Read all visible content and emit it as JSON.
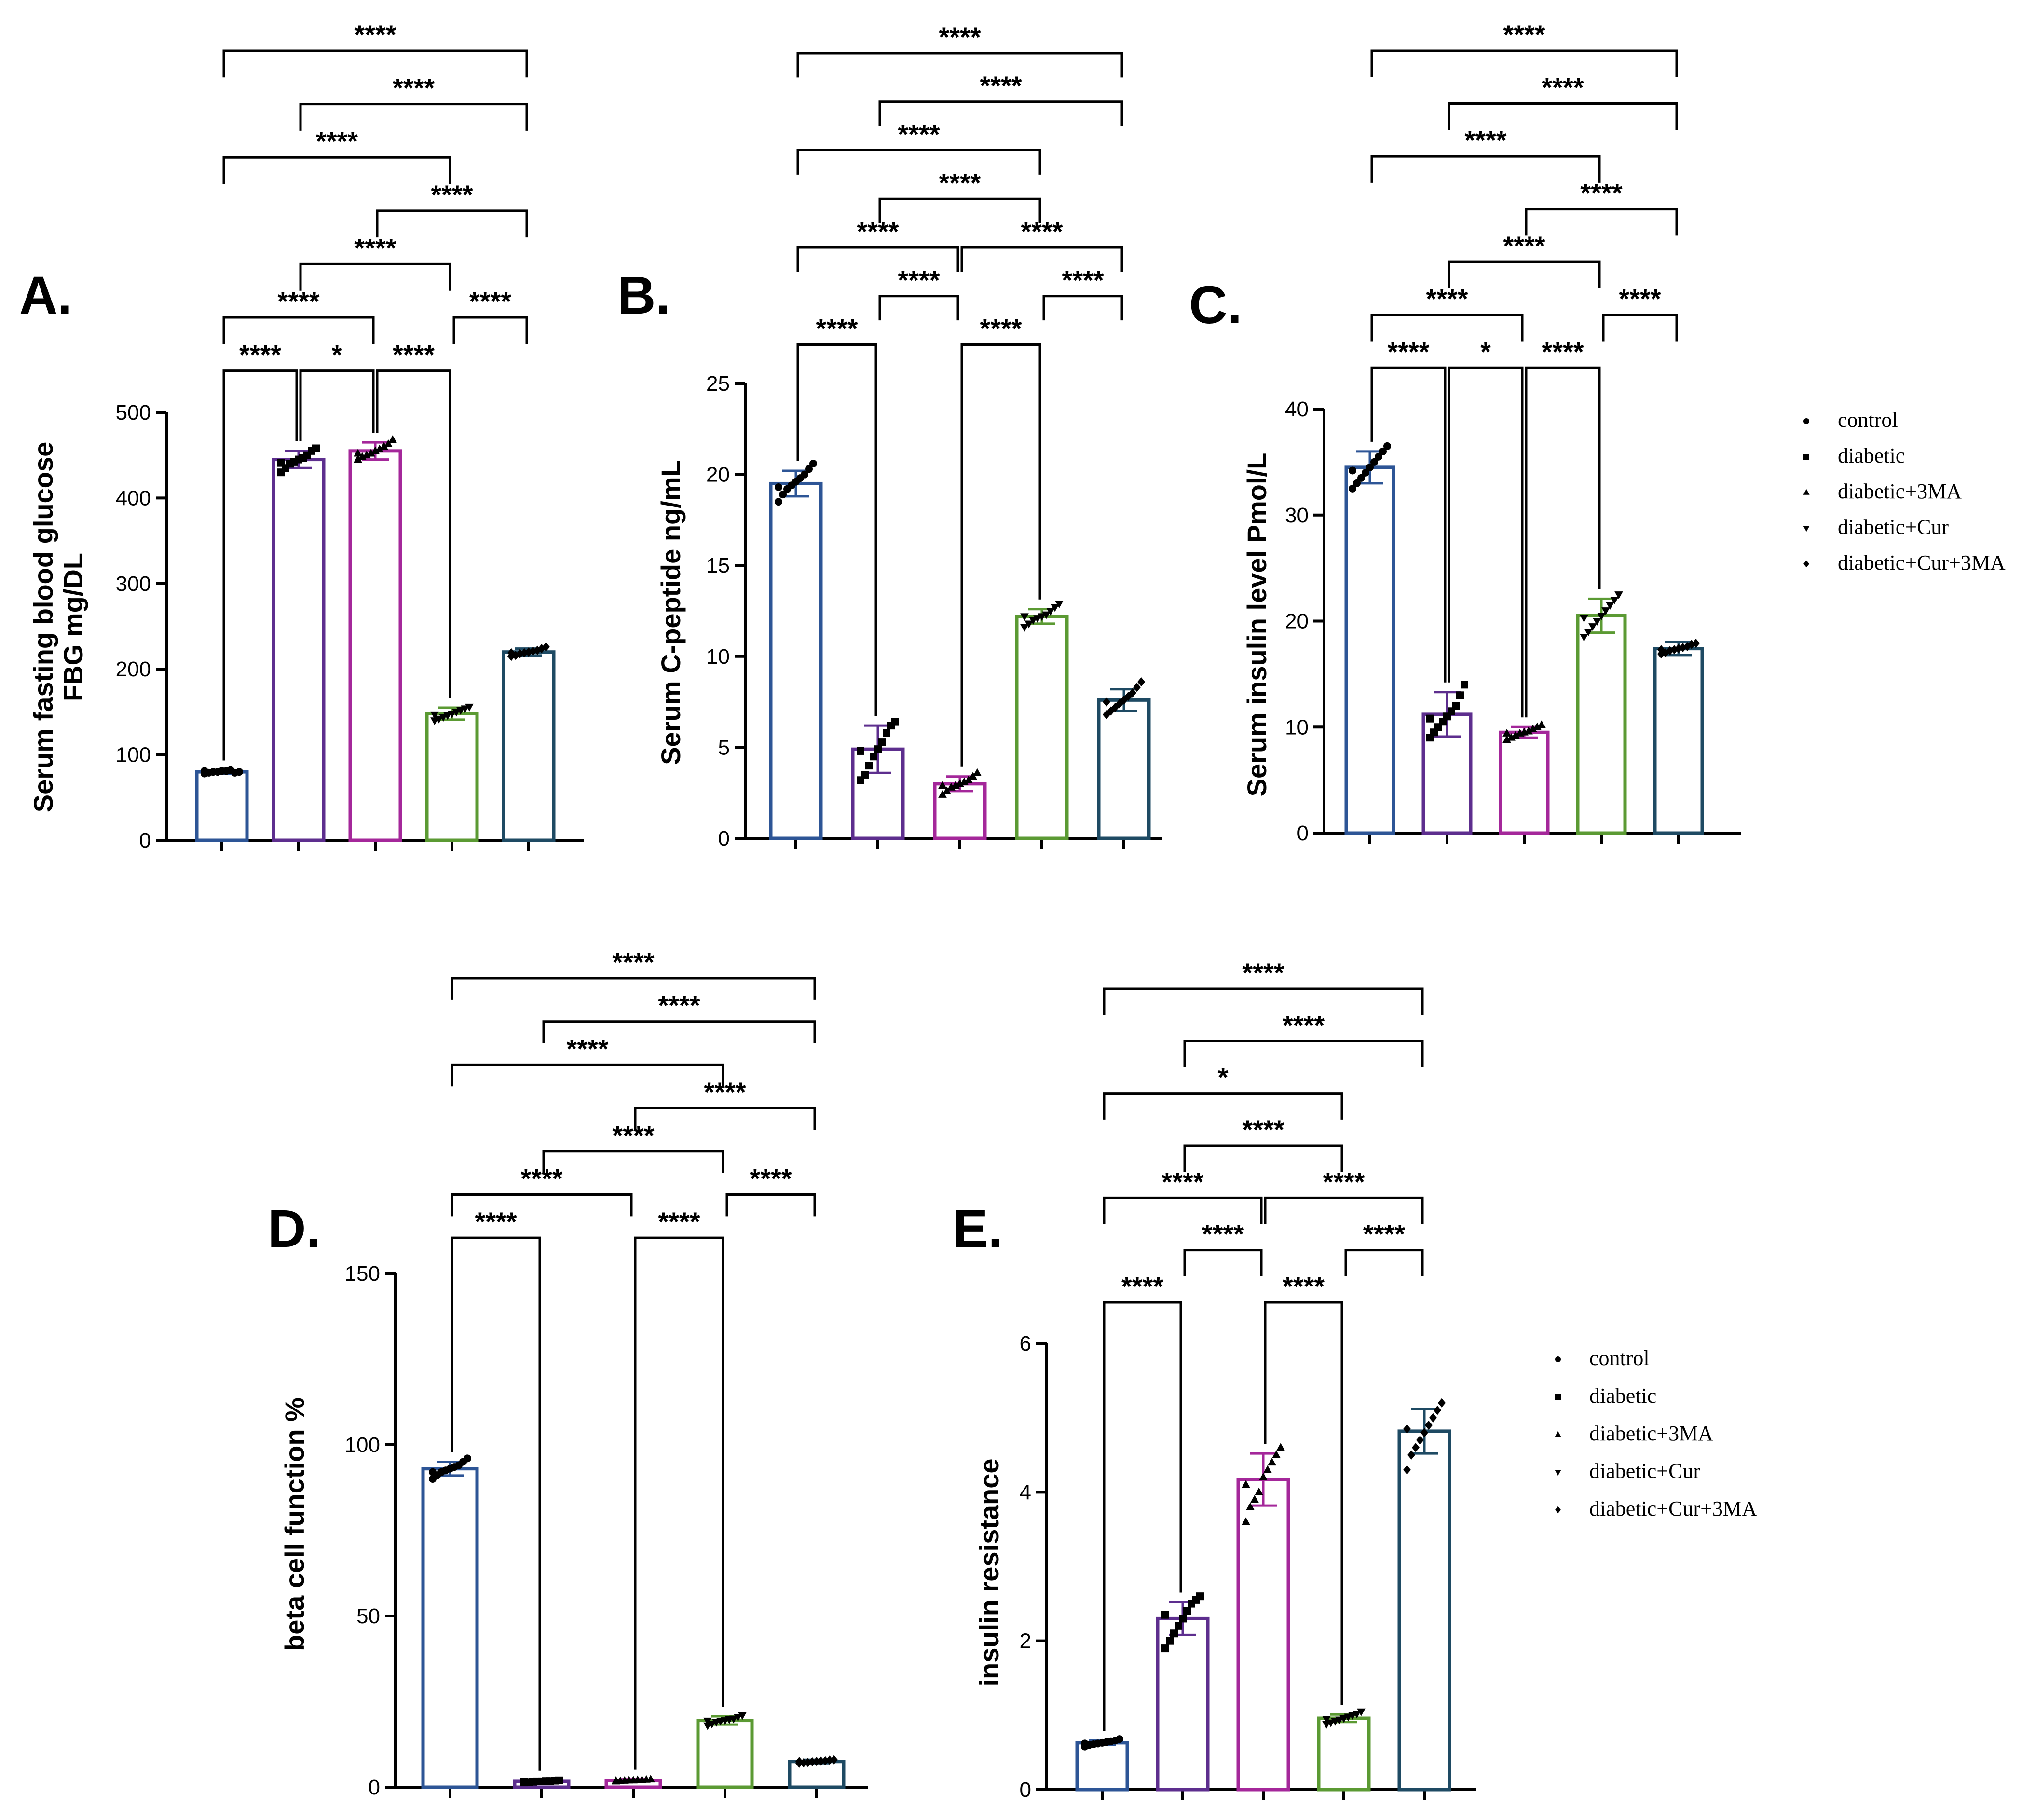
{
  "legend": {
    "items": [
      {
        "label": "control",
        "marker": "circle"
      },
      {
        "label": "diabetic",
        "marker": "square"
      },
      {
        "label": "diabetic+3MA",
        "marker": "triangle-up"
      },
      {
        "label": "diabetic+Cur",
        "marker": "triangle-down"
      },
      {
        "label": "diabetic+Cur+3MA",
        "marker": "diamond"
      }
    ]
  },
  "colors": {
    "control": "#2d5596",
    "diabetic": "#5d2e8e",
    "diabetic+3MA": "#a4279a",
    "diabetic+Cur": "#5b9a33",
    "diabetic+Cur+3MA": "#1e4a63",
    "points": "#000000"
  },
  "chart_data": [
    {
      "panel": "A.",
      "type": "bar",
      "ylabel": [
        "Serum fasting blood glucose",
        "FBG mg/DL"
      ],
      "ylim": [
        0,
        500
      ],
      "yticks": [
        0,
        100,
        200,
        300,
        400,
        500
      ],
      "categories": [
        "control",
        "diabetic",
        "diabetic+3MA",
        "diabetic+Cur",
        "diabetic+Cur+3MA"
      ],
      "values": [
        80,
        445,
        455,
        148,
        220
      ],
      "errors": [
        2,
        10,
        10,
        7,
        4
      ],
      "points": [
        [
          78,
          79,
          80,
          80,
          81,
          81,
          82,
          79,
          80,
          81
        ],
        [
          430,
          435,
          440,
          442,
          445,
          447,
          450,
          455,
          458,
          441
        ],
        [
          445,
          448,
          450,
          452,
          455,
          457,
          460,
          463,
          468,
          452
        ],
        [
          140,
          142,
          144,
          146,
          148,
          150,
          152,
          154,
          156,
          147
        ],
        [
          215,
          216,
          218,
          219,
          220,
          221,
          222,
          224,
          226,
          219
        ]
      ],
      "comparisons": [
        {
          "from": 0,
          "to": 1,
          "label": "****",
          "level": 0
        },
        {
          "from": 1,
          "to": 2,
          "label": "*",
          "level": 0
        },
        {
          "from": 2,
          "to": 3,
          "label": "****",
          "level": 0
        },
        {
          "from": 0,
          "to": 2,
          "label": "****",
          "level": 1
        },
        {
          "from": 3,
          "to": 4,
          "label": "****",
          "level": 1
        },
        {
          "from": 1,
          "to": 3,
          "label": "****",
          "level": 2
        },
        {
          "from": 2,
          "to": 4,
          "label": "****",
          "level": 3
        },
        {
          "from": 0,
          "to": 3,
          "label": "****",
          "level": 4
        },
        {
          "from": 1,
          "to": 4,
          "label": "****",
          "level": 5
        },
        {
          "from": 0,
          "to": 4,
          "label": "****",
          "level": 6
        }
      ]
    },
    {
      "panel": "B.",
      "type": "bar",
      "ylabel": [
        "Serum C-peptide ng/mL"
      ],
      "ylim": [
        0,
        25
      ],
      "yticks": [
        0,
        5,
        10,
        15,
        20,
        25
      ],
      "categories": [
        "control",
        "diabetic",
        "diabetic+3MA",
        "diabetic+Cur",
        "diabetic+Cur+3MA"
      ],
      "values": [
        19.5,
        4.9,
        3.0,
        12.2,
        7.6
      ],
      "errors": [
        0.7,
        1.3,
        0.4,
        0.4,
        0.6
      ],
      "points": [
        [
          18.5,
          18.9,
          19.2,
          19.4,
          19.6,
          19.8,
          20.0,
          20.3,
          20.6,
          19.3
        ],
        [
          3.2,
          3.5,
          4.0,
          4.5,
          4.9,
          5.3,
          5.8,
          6.2,
          6.4,
          4.8
        ],
        [
          2.4,
          2.6,
          2.8,
          2.9,
          3.0,
          3.1,
          3.2,
          3.4,
          3.6,
          2.9
        ],
        [
          11.6,
          11.8,
          12.0,
          12.1,
          12.2,
          12.3,
          12.5,
          12.7,
          12.9,
          12.2
        ],
        [
          6.8,
          7.0,
          7.2,
          7.4,
          7.6,
          7.8,
          8.0,
          8.3,
          8.6,
          7.5
        ]
      ],
      "comparisons": [
        {
          "from": 0,
          "to": 1,
          "label": "****",
          "level": 0
        },
        {
          "from": 2,
          "to": 3,
          "label": "****",
          "level": 0
        },
        {
          "from": 1,
          "to": 2,
          "label": "****",
          "level": 1
        },
        {
          "from": 3,
          "to": 4,
          "label": "****",
          "level": 1
        },
        {
          "from": 0,
          "to": 2,
          "label": "****",
          "level": 2
        },
        {
          "from": 2,
          "to": 4,
          "label": "****",
          "level": 2
        },
        {
          "from": 1,
          "to": 3,
          "label": "****",
          "level": 3
        },
        {
          "from": 0,
          "to": 3,
          "label": "****",
          "level": 4
        },
        {
          "from": 1,
          "to": 4,
          "label": "****",
          "level": 5
        },
        {
          "from": 0,
          "to": 4,
          "label": "****",
          "level": 6
        }
      ]
    },
    {
      "panel": "C.",
      "type": "bar",
      "ylabel": [
        "Serum insulin level Pmol/L"
      ],
      "ylim": [
        0,
        40
      ],
      "yticks": [
        0,
        10,
        20,
        30,
        40
      ],
      "categories": [
        "control",
        "diabetic",
        "diabetic+3MA",
        "diabetic+Cur",
        "diabetic+Cur+3MA"
      ],
      "values": [
        34.5,
        11.2,
        9.5,
        20.5,
        17.4
      ],
      "errors": [
        1.5,
        2.1,
        0.5,
        1.6,
        0.6
      ],
      "points": [
        [
          32.5,
          33.0,
          33.5,
          34.0,
          34.5,
          35.0,
          35.5,
          36.0,
          36.5,
          34.2
        ],
        [
          9.0,
          9.5,
          10.0,
          10.5,
          11.0,
          11.5,
          12.0,
          13.0,
          14.0,
          10.8
        ],
        [
          8.8,
          9.0,
          9.2,
          9.4,
          9.5,
          9.6,
          9.8,
          10.0,
          10.2,
          9.4
        ],
        [
          18.5,
          19.0,
          19.5,
          20.0,
          20.5,
          21.0,
          21.5,
          22.0,
          22.5,
          20.3
        ],
        [
          16.9,
          17.0,
          17.2,
          17.3,
          17.4,
          17.5,
          17.6,
          17.8,
          17.9,
          17.3
        ]
      ],
      "comparisons": [
        {
          "from": 0,
          "to": 1,
          "label": "****",
          "level": 0
        },
        {
          "from": 1,
          "to": 2,
          "label": "*",
          "level": 0
        },
        {
          "from": 2,
          "to": 3,
          "label": "****",
          "level": 0
        },
        {
          "from": 0,
          "to": 2,
          "label": "****",
          "level": 1
        },
        {
          "from": 3,
          "to": 4,
          "label": "****",
          "level": 1
        },
        {
          "from": 1,
          "to": 3,
          "label": "****",
          "level": 2
        },
        {
          "from": 2,
          "to": 4,
          "label": "****",
          "level": 3
        },
        {
          "from": 0,
          "to": 3,
          "label": "****",
          "level": 4
        },
        {
          "from": 1,
          "to": 4,
          "label": "****",
          "level": 5
        },
        {
          "from": 0,
          "to": 4,
          "label": "****",
          "level": 6
        }
      ]
    },
    {
      "panel": "D.",
      "type": "bar",
      "ylabel": [
        "beta cell function %"
      ],
      "ylim": [
        0,
        150
      ],
      "yticks": [
        0,
        50,
        100,
        150
      ],
      "categories": [
        "control",
        "diabetic",
        "diabetic+3MA",
        "diabetic+Cur",
        "diabetic+Cur+3MA"
      ],
      "values": [
        93,
        1.7,
        2.0,
        19.5,
        7.5
      ],
      "errors": [
        2,
        0.3,
        0.3,
        1.2,
        0.5
      ],
      "points": [
        [
          90,
          91,
          92,
          92.5,
          93,
          93.5,
          94,
          95,
          96,
          92
        ],
        [
          1.4,
          1.5,
          1.6,
          1.7,
          1.7,
          1.8,
          1.8,
          1.9,
          2.0,
          1.6
        ],
        [
          1.7,
          1.8,
          1.9,
          2.0,
          2.0,
          2.1,
          2.1,
          2.2,
          2.3,
          1.9
        ],
        [
          18,
          18.5,
          19,
          19.3,
          19.5,
          19.8,
          20,
          20.5,
          21,
          19.4
        ],
        [
          7.0,
          7.1,
          7.2,
          7.4,
          7.5,
          7.6,
          7.7,
          7.9,
          8.0,
          7.5
        ]
      ],
      "comparisons": [
        {
          "from": 0,
          "to": 1,
          "label": "****",
          "level": 0
        },
        {
          "from": 2,
          "to": 3,
          "label": "****",
          "level": 0
        },
        {
          "from": 0,
          "to": 2,
          "label": "****",
          "level": 1
        },
        {
          "from": 3,
          "to": 4,
          "label": "****",
          "level": 1
        },
        {
          "from": 1,
          "to": 3,
          "label": "****",
          "level": 2
        },
        {
          "from": 2,
          "to": 4,
          "label": "****",
          "level": 3
        },
        {
          "from": 0,
          "to": 3,
          "label": "****",
          "level": 4
        },
        {
          "from": 1,
          "to": 4,
          "label": "****",
          "level": 5
        },
        {
          "from": 0,
          "to": 4,
          "label": "****",
          "level": 6
        }
      ]
    },
    {
      "panel": "E.",
      "type": "bar",
      "ylabel": [
        "insulin resistance"
      ],
      "ylim": [
        0,
        6
      ],
      "yticks": [
        0,
        2,
        4,
        6
      ],
      "categories": [
        "control",
        "diabetic",
        "diabetic+3MA",
        "diabetic+Cur",
        "diabetic+Cur+3MA"
      ],
      "values": [
        0.63,
        2.3,
        4.17,
        0.96,
        4.82
      ],
      "errors": [
        0.03,
        0.22,
        0.35,
        0.05,
        0.3
      ],
      "points": [
        [
          0.58,
          0.6,
          0.61,
          0.62,
          0.63,
          0.64,
          0.65,
          0.66,
          0.68,
          0.62
        ],
        [
          1.9,
          2.0,
          2.1,
          2.2,
          2.3,
          2.4,
          2.5,
          2.55,
          2.6,
          2.35
        ],
        [
          3.6,
          3.8,
          3.9,
          4.0,
          4.2,
          4.3,
          4.4,
          4.5,
          4.6,
          4.1
        ],
        [
          0.88,
          0.9,
          0.92,
          0.94,
          0.96,
          0.98,
          1.0,
          1.02,
          1.05,
          0.95
        ],
        [
          4.3,
          4.5,
          4.6,
          4.7,
          4.8,
          4.9,
          5.0,
          5.1,
          5.2,
          4.85
        ]
      ],
      "comparisons": [
        {
          "from": 0,
          "to": 1,
          "label": "****",
          "level": 0
        },
        {
          "from": 2,
          "to": 3,
          "label": "****",
          "level": 0
        },
        {
          "from": 1,
          "to": 2,
          "label": "****",
          "level": 1
        },
        {
          "from": 3,
          "to": 4,
          "label": "****",
          "level": 1
        },
        {
          "from": 0,
          "to": 2,
          "label": "****",
          "level": 2
        },
        {
          "from": 2,
          "to": 4,
          "label": "****",
          "level": 2
        },
        {
          "from": 1,
          "to": 3,
          "label": "****",
          "level": 3
        },
        {
          "from": 0,
          "to": 3,
          "label": "*",
          "level": 4
        },
        {
          "from": 1,
          "to": 4,
          "label": "****",
          "level": 5
        },
        {
          "from": 0,
          "to": 4,
          "label": "****",
          "level": 6
        }
      ]
    }
  ]
}
